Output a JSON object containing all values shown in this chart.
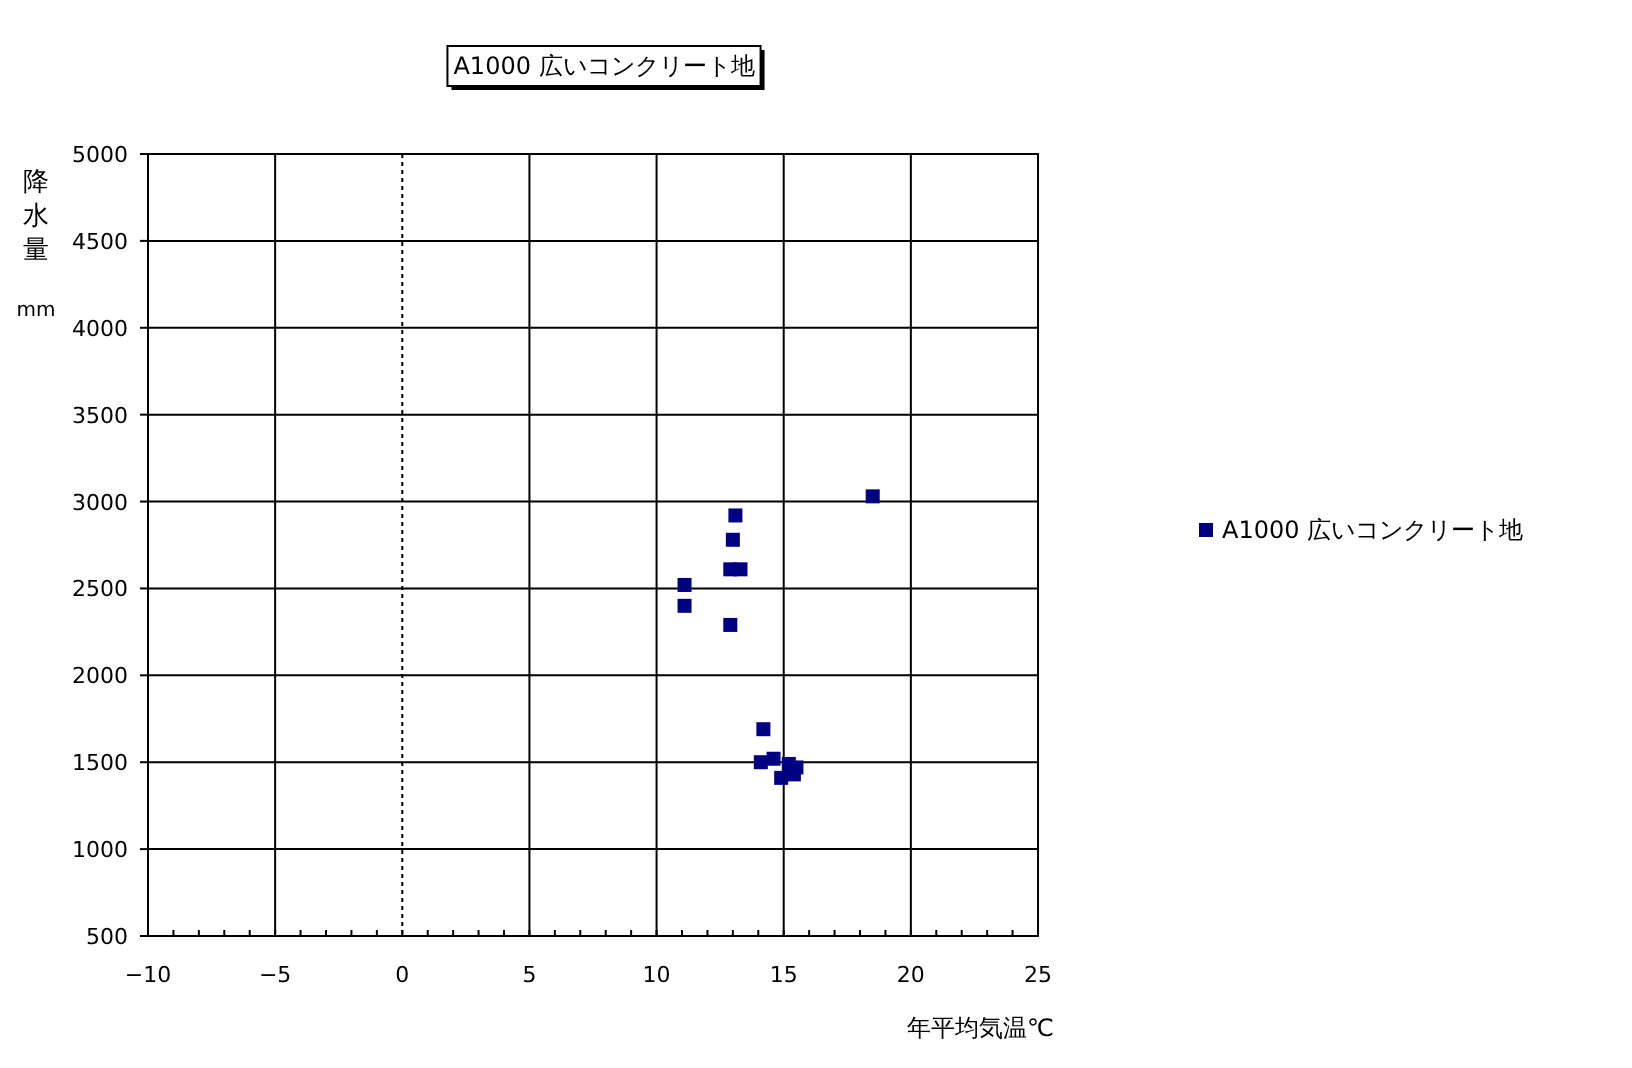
{
  "chart_data": {
    "type": "scatter",
    "title": "A1000 広いコンクリート地",
    "xlabel": "年平均気温℃",
    "ylabel": "降水量 mm",
    "xlim": [
      -10,
      25
    ],
    "xticks": [
      -10,
      -5,
      0,
      5,
      10,
      15,
      20,
      25
    ],
    "ylim": [
      500,
      5000
    ],
    "yticks": [
      500,
      1000,
      1500,
      2000,
      2500,
      3000,
      3500,
      4000,
      4500,
      5000
    ],
    "grid": true,
    "legend": "right",
    "marker": "square",
    "ref_lines": [
      {
        "axis": "x",
        "value": 0,
        "color": "#000000",
        "line_style": "dotted"
      }
    ],
    "series": [
      {
        "name": "A1000 広いコンクリート地",
        "color": "#000080",
        "x": [
          18.5,
          13.1,
          13.0,
          12.9,
          13.3,
          11.1,
          11.1,
          12.9,
          14.2,
          14.1,
          14.6,
          15.2,
          15.5,
          14.9,
          15.4
        ],
        "values": [
          3030,
          2920,
          2780,
          2610,
          2610,
          2520,
          2400,
          2290,
          1690,
          1500,
          1520,
          1490,
          1470,
          1410,
          1430
        ]
      }
    ]
  }
}
